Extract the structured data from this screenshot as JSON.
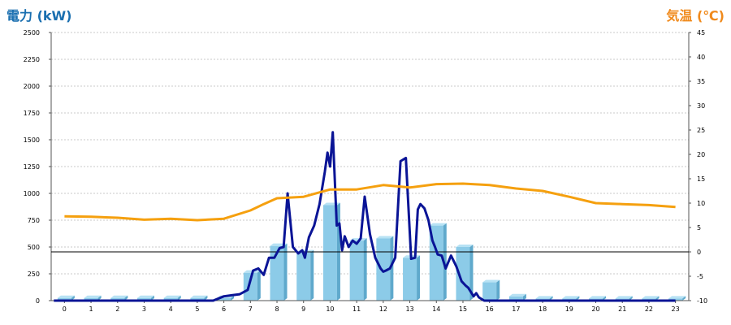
{
  "chart_data": {
    "type": "bar",
    "left_axis_title": "電力 (kW)",
    "right_axis_title": "気温 (℃)",
    "categories": [
      "0",
      "1",
      "2",
      "3",
      "4",
      "5",
      "6",
      "7",
      "8",
      "9",
      "10",
      "11",
      "12",
      "13",
      "14",
      "15",
      "16",
      "17",
      "18",
      "19",
      "20",
      "21",
      "22",
      "23"
    ],
    "ylim_left": [
      0,
      2500
    ],
    "yticks_left": [
      0,
      250,
      500,
      750,
      1000,
      1250,
      1500,
      1750,
      2000,
      2250,
      2500
    ],
    "ylim_right": [
      -10,
      45
    ],
    "yticks_right": [
      -10,
      -5,
      0,
      5,
      10,
      15,
      20,
      25,
      30,
      35,
      40,
      45
    ],
    "grid": "horizontal dashed",
    "colors": {
      "bars": "#8ccbe8",
      "power_line": "#0a1496",
      "temp_line": "#f5a00f",
      "left_title": "#1a6fb0",
      "right_title": "#f08a1c"
    },
    "series": [
      {
        "kind": "bar",
        "axis": "left",
        "values": [
          25,
          25,
          25,
          25,
          25,
          25,
          25,
          260,
          510,
          450,
          890,
          560,
          580,
          400,
          700,
          500,
          170,
          40,
          20,
          20,
          20,
          20,
          20,
          20
        ]
      },
      {
        "kind": "line",
        "axis": "left",
        "x": [
          -0.4,
          1,
          2,
          3,
          4,
          5,
          5.6,
          6,
          6.3,
          6.6,
          6.9,
          7.1,
          7.3,
          7.5,
          7.7,
          7.9,
          8.1,
          8.25,
          8.4,
          8.6,
          8.8,
          8.95,
          9.05,
          9.2,
          9.4,
          9.6,
          9.8,
          9.9,
          10,
          10.1,
          10.25,
          10.35,
          10.45,
          10.55,
          10.7,
          10.85,
          11,
          11.15,
          11.3,
          11.5,
          11.7,
          11.9,
          12,
          12.1,
          12.25,
          12.45,
          12.65,
          12.85,
          13.05,
          13.2,
          13.3,
          13.4,
          13.55,
          13.7,
          13.85,
          13.95,
          14.05,
          14.2,
          14.35,
          14.55,
          14.75,
          14.95,
          15.1,
          15.2,
          15.3,
          15.4,
          15.5,
          15.6,
          15.8,
          16,
          16.2,
          16.4,
          16.6,
          16.8,
          17,
          17.5,
          18,
          19,
          20,
          21,
          22,
          23
        ],
        "y": [
          0,
          0,
          0,
          0,
          0,
          0,
          0,
          40,
          50,
          60,
          100,
          280,
          300,
          240,
          400,
          400,
          490,
          500,
          1000,
          500,
          440,
          470,
          400,
          590,
          700,
          900,
          1200,
          1380,
          1250,
          1570,
          700,
          720,
          470,
          600,
          500,
          560,
          530,
          580,
          970,
          620,
          400,
          300,
          270,
          280,
          300,
          400,
          1300,
          1330,
          390,
          400,
          850,
          900,
          860,
          750,
          560,
          500,
          430,
          420,
          300,
          420,
          320,
          180,
          140,
          120,
          80,
          40,
          70,
          30,
          0,
          0,
          0,
          0,
          0,
          0,
          0,
          0,
          0,
          0,
          0,
          0,
          0,
          0
        ]
      },
      {
        "kind": "line",
        "axis": "right",
        "x": [
          0,
          1,
          2,
          3,
          4,
          5,
          6,
          7,
          7.5,
          8,
          9,
          10,
          11,
          12,
          13,
          14,
          15,
          16,
          17,
          18,
          19,
          20,
          21,
          22,
          23
        ],
        "y": [
          7.3,
          7.2,
          7,
          6.6,
          6.8,
          6.5,
          6.8,
          8.5,
          9.8,
          11,
          11.3,
          12.8,
          12.8,
          13.7,
          13.2,
          13.9,
          14,
          13.7,
          13,
          12.5,
          11.3,
          10,
          9.8,
          9.6,
          9.2
        ]
      }
    ]
  }
}
